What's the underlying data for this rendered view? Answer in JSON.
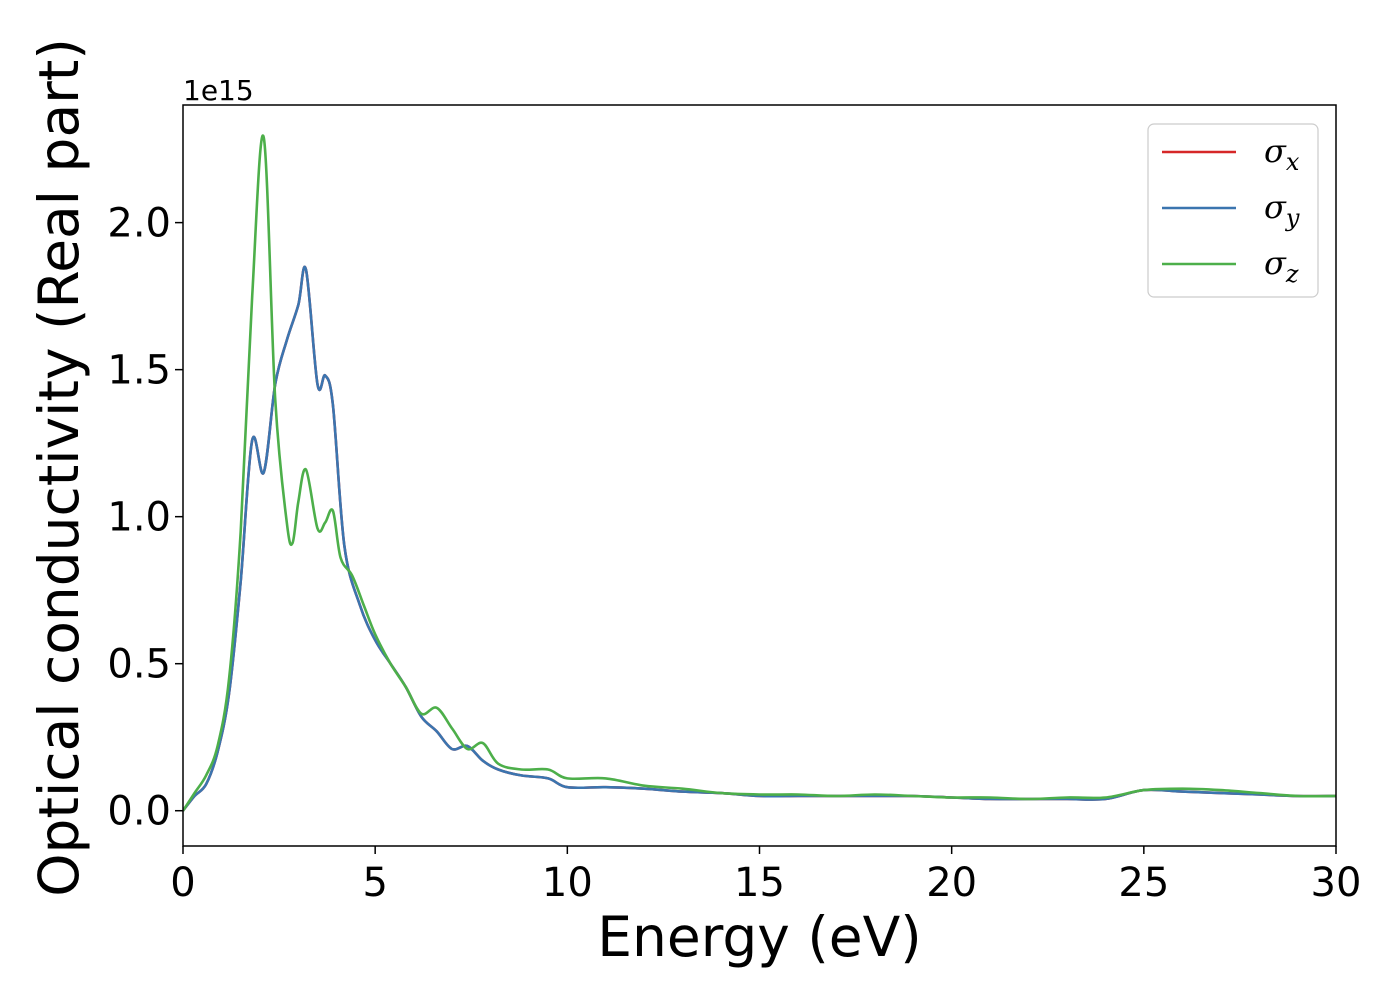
{
  "chart_data": {
    "type": "line",
    "xlabel": "Energy (eV)",
    "ylabel": "Optical conductivity (Real part)",
    "y_offset_label": "1e15",
    "xlim": [
      0,
      30
    ],
    "ylim": [
      -0.12,
      2.4
    ],
    "x_ticks": [
      0,
      5,
      10,
      15,
      20,
      25,
      30
    ],
    "x_tick_labels": [
      "0",
      "5",
      "10",
      "15",
      "20",
      "25",
      "30"
    ],
    "y_ticks": [
      0.0,
      0.5,
      1.0,
      1.5,
      2.0
    ],
    "y_tick_labels": [
      "0.0",
      "0.5",
      "1.0",
      "1.5",
      "2.0"
    ],
    "grid": false,
    "legend_position": "top-right",
    "series": [
      {
        "name": "σx",
        "label_base": "σ",
        "label_sub": "x",
        "color": "#d62728",
        "x": [
          0,
          0.3,
          0.6,
          0.9,
          1.2,
          1.5,
          1.8,
          2.1,
          2.4,
          2.7,
          3.0,
          3.2,
          3.5,
          3.7,
          3.9,
          4.2,
          4.6,
          5.0,
          5.4,
          5.8,
          6.2,
          6.6,
          7.0,
          7.4,
          7.8,
          8.2,
          8.8,
          9.5,
          10.0,
          11.0,
          12.0,
          13.0,
          14.0,
          15.0,
          16.0,
          17.0,
          18.0,
          19.0,
          20.0,
          21.0,
          22.0,
          23.0,
          24.0,
          25.0,
          26.0,
          27.0,
          28.0,
          29.0,
          30.0
        ],
        "values": [
          0.0,
          0.05,
          0.09,
          0.2,
          0.4,
          0.78,
          1.26,
          1.15,
          1.45,
          1.6,
          1.72,
          1.84,
          1.45,
          1.48,
          1.38,
          0.9,
          0.7,
          0.58,
          0.5,
          0.42,
          0.32,
          0.27,
          0.21,
          0.22,
          0.17,
          0.14,
          0.12,
          0.11,
          0.08,
          0.08,
          0.075,
          0.065,
          0.06,
          0.05,
          0.05,
          0.05,
          0.05,
          0.05,
          0.045,
          0.04,
          0.04,
          0.04,
          0.04,
          0.07,
          0.065,
          0.06,
          0.055,
          0.05,
          0.05
        ]
      },
      {
        "name": "σy",
        "label_base": "σ",
        "label_sub": "y",
        "color": "#3b75af",
        "x": [
          0,
          0.3,
          0.6,
          0.9,
          1.2,
          1.5,
          1.8,
          2.1,
          2.4,
          2.7,
          3.0,
          3.2,
          3.5,
          3.7,
          3.9,
          4.2,
          4.6,
          5.0,
          5.4,
          5.8,
          6.2,
          6.6,
          7.0,
          7.4,
          7.8,
          8.2,
          8.8,
          9.5,
          10.0,
          11.0,
          12.0,
          13.0,
          14.0,
          15.0,
          16.0,
          17.0,
          18.0,
          19.0,
          20.0,
          21.0,
          22.0,
          23.0,
          24.0,
          25.0,
          26.0,
          27.0,
          28.0,
          29.0,
          30.0
        ],
        "values": [
          0.0,
          0.05,
          0.09,
          0.2,
          0.4,
          0.78,
          1.26,
          1.15,
          1.45,
          1.6,
          1.72,
          1.84,
          1.45,
          1.48,
          1.38,
          0.9,
          0.7,
          0.58,
          0.5,
          0.42,
          0.32,
          0.27,
          0.21,
          0.22,
          0.17,
          0.14,
          0.12,
          0.11,
          0.08,
          0.08,
          0.075,
          0.065,
          0.06,
          0.05,
          0.05,
          0.05,
          0.05,
          0.05,
          0.045,
          0.04,
          0.04,
          0.04,
          0.04,
          0.07,
          0.065,
          0.06,
          0.055,
          0.05,
          0.05
        ]
      },
      {
        "name": "σz",
        "label_base": "σ",
        "label_sub": "z",
        "color": "#4daf4a",
        "x": [
          0,
          0.3,
          0.6,
          0.9,
          1.2,
          1.5,
          1.8,
          2.1,
          2.4,
          2.7,
          2.85,
          3.0,
          3.2,
          3.5,
          3.7,
          3.9,
          4.1,
          4.4,
          4.7,
          5.0,
          5.4,
          5.8,
          6.2,
          6.6,
          7.0,
          7.4,
          7.8,
          8.2,
          8.8,
          9.5,
          10.0,
          11.0,
          12.0,
          13.0,
          14.0,
          15.0,
          16.0,
          17.0,
          18.0,
          19.0,
          20.0,
          21.0,
          22.0,
          23.0,
          24.0,
          25.0,
          26.0,
          27.0,
          28.0,
          29.0,
          30.0
        ],
        "values": [
          0.0,
          0.06,
          0.12,
          0.22,
          0.45,
          0.95,
          1.75,
          2.29,
          1.4,
          0.98,
          0.91,
          1.05,
          1.16,
          0.96,
          0.98,
          1.02,
          0.86,
          0.8,
          0.7,
          0.6,
          0.5,
          0.42,
          0.33,
          0.35,
          0.28,
          0.21,
          0.23,
          0.16,
          0.14,
          0.14,
          0.11,
          0.11,
          0.085,
          0.075,
          0.06,
          0.055,
          0.055,
          0.05,
          0.055,
          0.05,
          0.045,
          0.045,
          0.04,
          0.045,
          0.045,
          0.07,
          0.075,
          0.07,
          0.06,
          0.05,
          0.05
        ]
      }
    ]
  }
}
